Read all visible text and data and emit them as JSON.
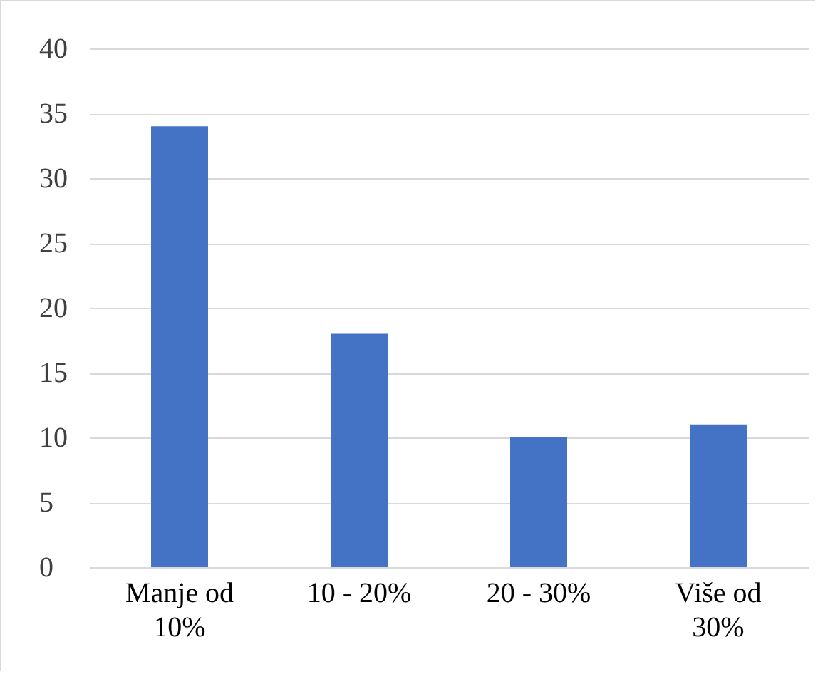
{
  "chart_data": {
    "type": "bar",
    "categories": [
      "Manje od 10%",
      "10 - 20%",
      "20 - 30%",
      "Više od 30%"
    ],
    "values": [
      34,
      18,
      10,
      11
    ],
    "color": "#4472c4",
    "ylim": [
      0,
      40
    ],
    "yticks": [
      0,
      5,
      10,
      15,
      20,
      25,
      30,
      35,
      40
    ],
    "grid": "y"
  }
}
